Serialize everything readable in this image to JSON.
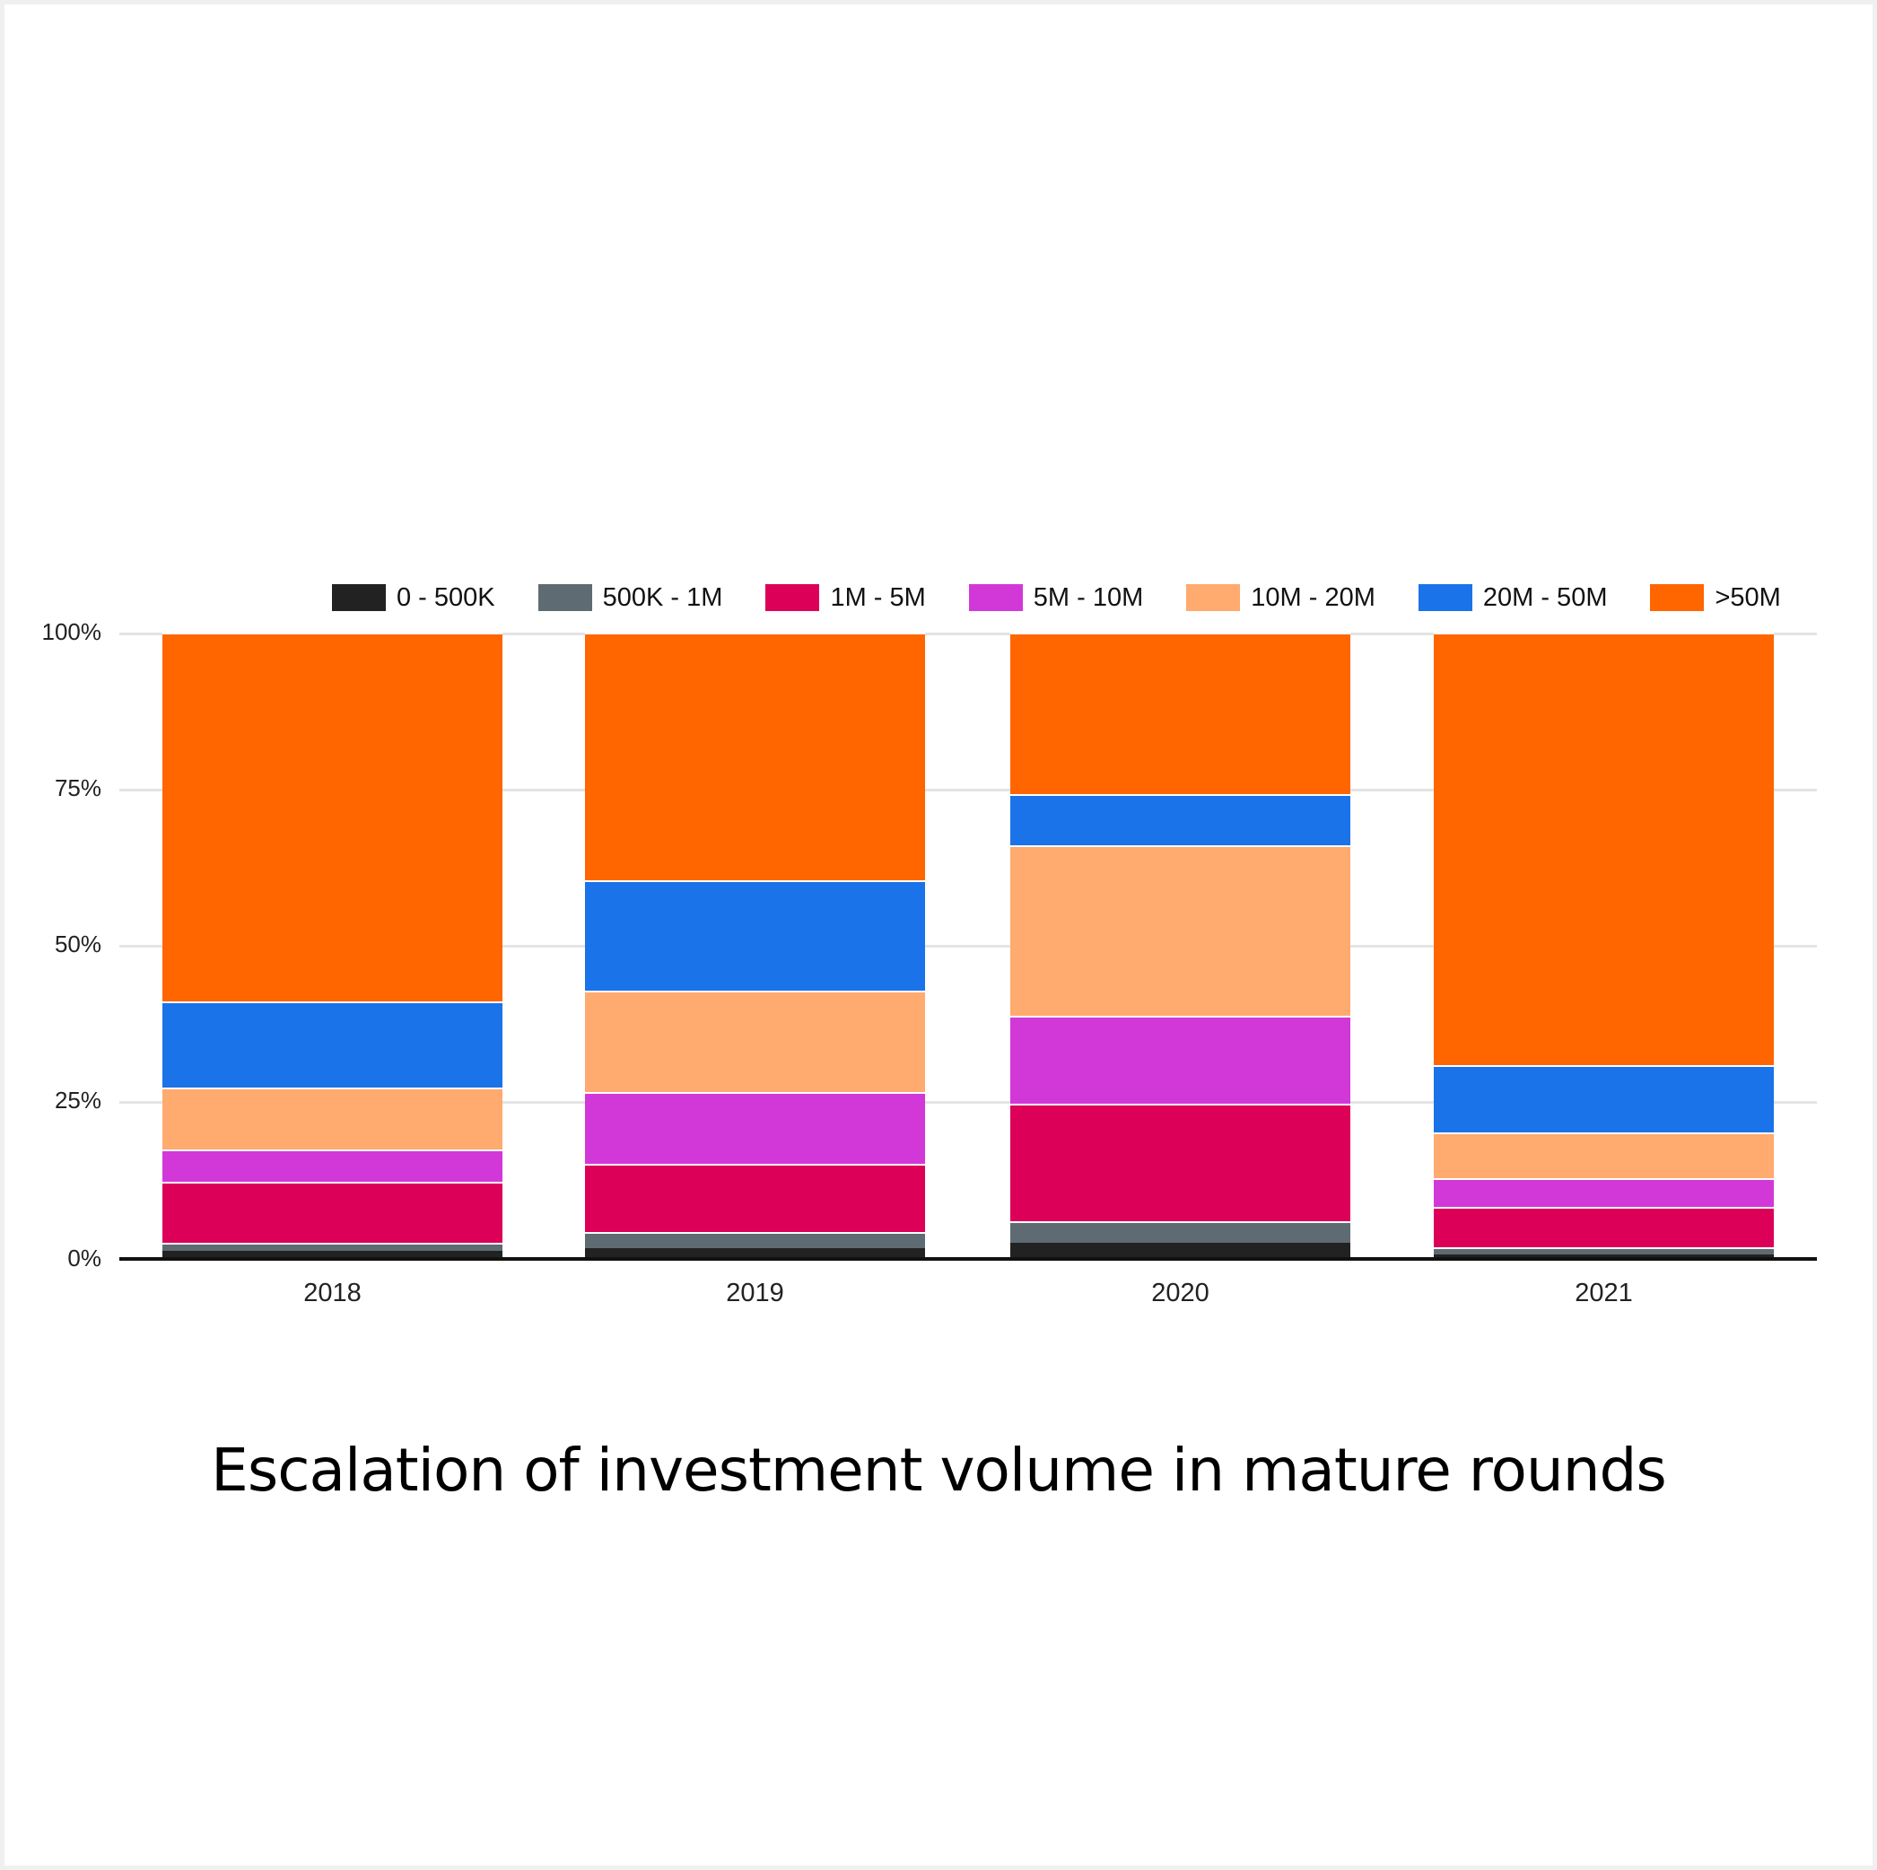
{
  "title": "Escalation of investment volume in mature rounds",
  "legend": [
    {
      "label": "0 - 500K",
      "color": "#222222"
    },
    {
      "label": "500K - 1M",
      "color": "#5f6b72"
    },
    {
      "label": "1M - 5M",
      "color": "#dc0058"
    },
    {
      "label": "5M - 10M",
      "color": "#d238d8"
    },
    {
      "label": "10M - 20M",
      "color": "#ffaa6e"
    },
    {
      "label": "20M - 50M",
      "color": "#1a73e8"
    },
    {
      "label": ">50M",
      "color": "#ff6600"
    }
  ],
  "y_axis": {
    "ticks": [
      "100%",
      "75%",
      "50%",
      "25%",
      "0%"
    ]
  },
  "x_axis": {
    "ticks": [
      "2018",
      "2019",
      "2020",
      "2021"
    ]
  },
  "chart_data": {
    "type": "bar",
    "stacked": true,
    "normalized": true,
    "title": "Escalation of investment volume in mature rounds",
    "xlabel": "",
    "ylabel": "",
    "ylim": [
      0,
      100
    ],
    "y_tick_labels": [
      "0%",
      "25%",
      "50%",
      "75%",
      "100%"
    ],
    "grid": true,
    "legend_position": "top-right",
    "categories": [
      "2018",
      "2019",
      "2020",
      "2021"
    ],
    "series": [
      {
        "name": "0 - 500K",
        "color": "#222222",
        "values": [
          1.0,
          1.4,
          2.3,
          0.4
        ]
      },
      {
        "name": "500K - 1M",
        "color": "#5f6b72",
        "values": [
          1.3,
          2.6,
          3.4,
          1.2
        ]
      },
      {
        "name": "1M - 5M",
        "color": "#dc0058",
        "values": [
          9.8,
          10.9,
          18.9,
          6.4
        ]
      },
      {
        "name": "5M - 10M",
        "color": "#d238d8",
        "values": [
          5.2,
          11.5,
          14.1,
          4.7
        ]
      },
      {
        "name": "10M - 20M",
        "color": "#ffaa6e",
        "values": [
          9.8,
          16.3,
          27.2,
          7.3
        ]
      },
      {
        "name": "20M - 50M",
        "color": "#1a73e8",
        "values": [
          13.8,
          17.6,
          8.2,
          10.7
        ]
      },
      {
        "name": ">50M",
        "color": "#ff6600",
        "values": [
          59.1,
          39.7,
          25.9,
          69.3
        ]
      }
    ]
  }
}
